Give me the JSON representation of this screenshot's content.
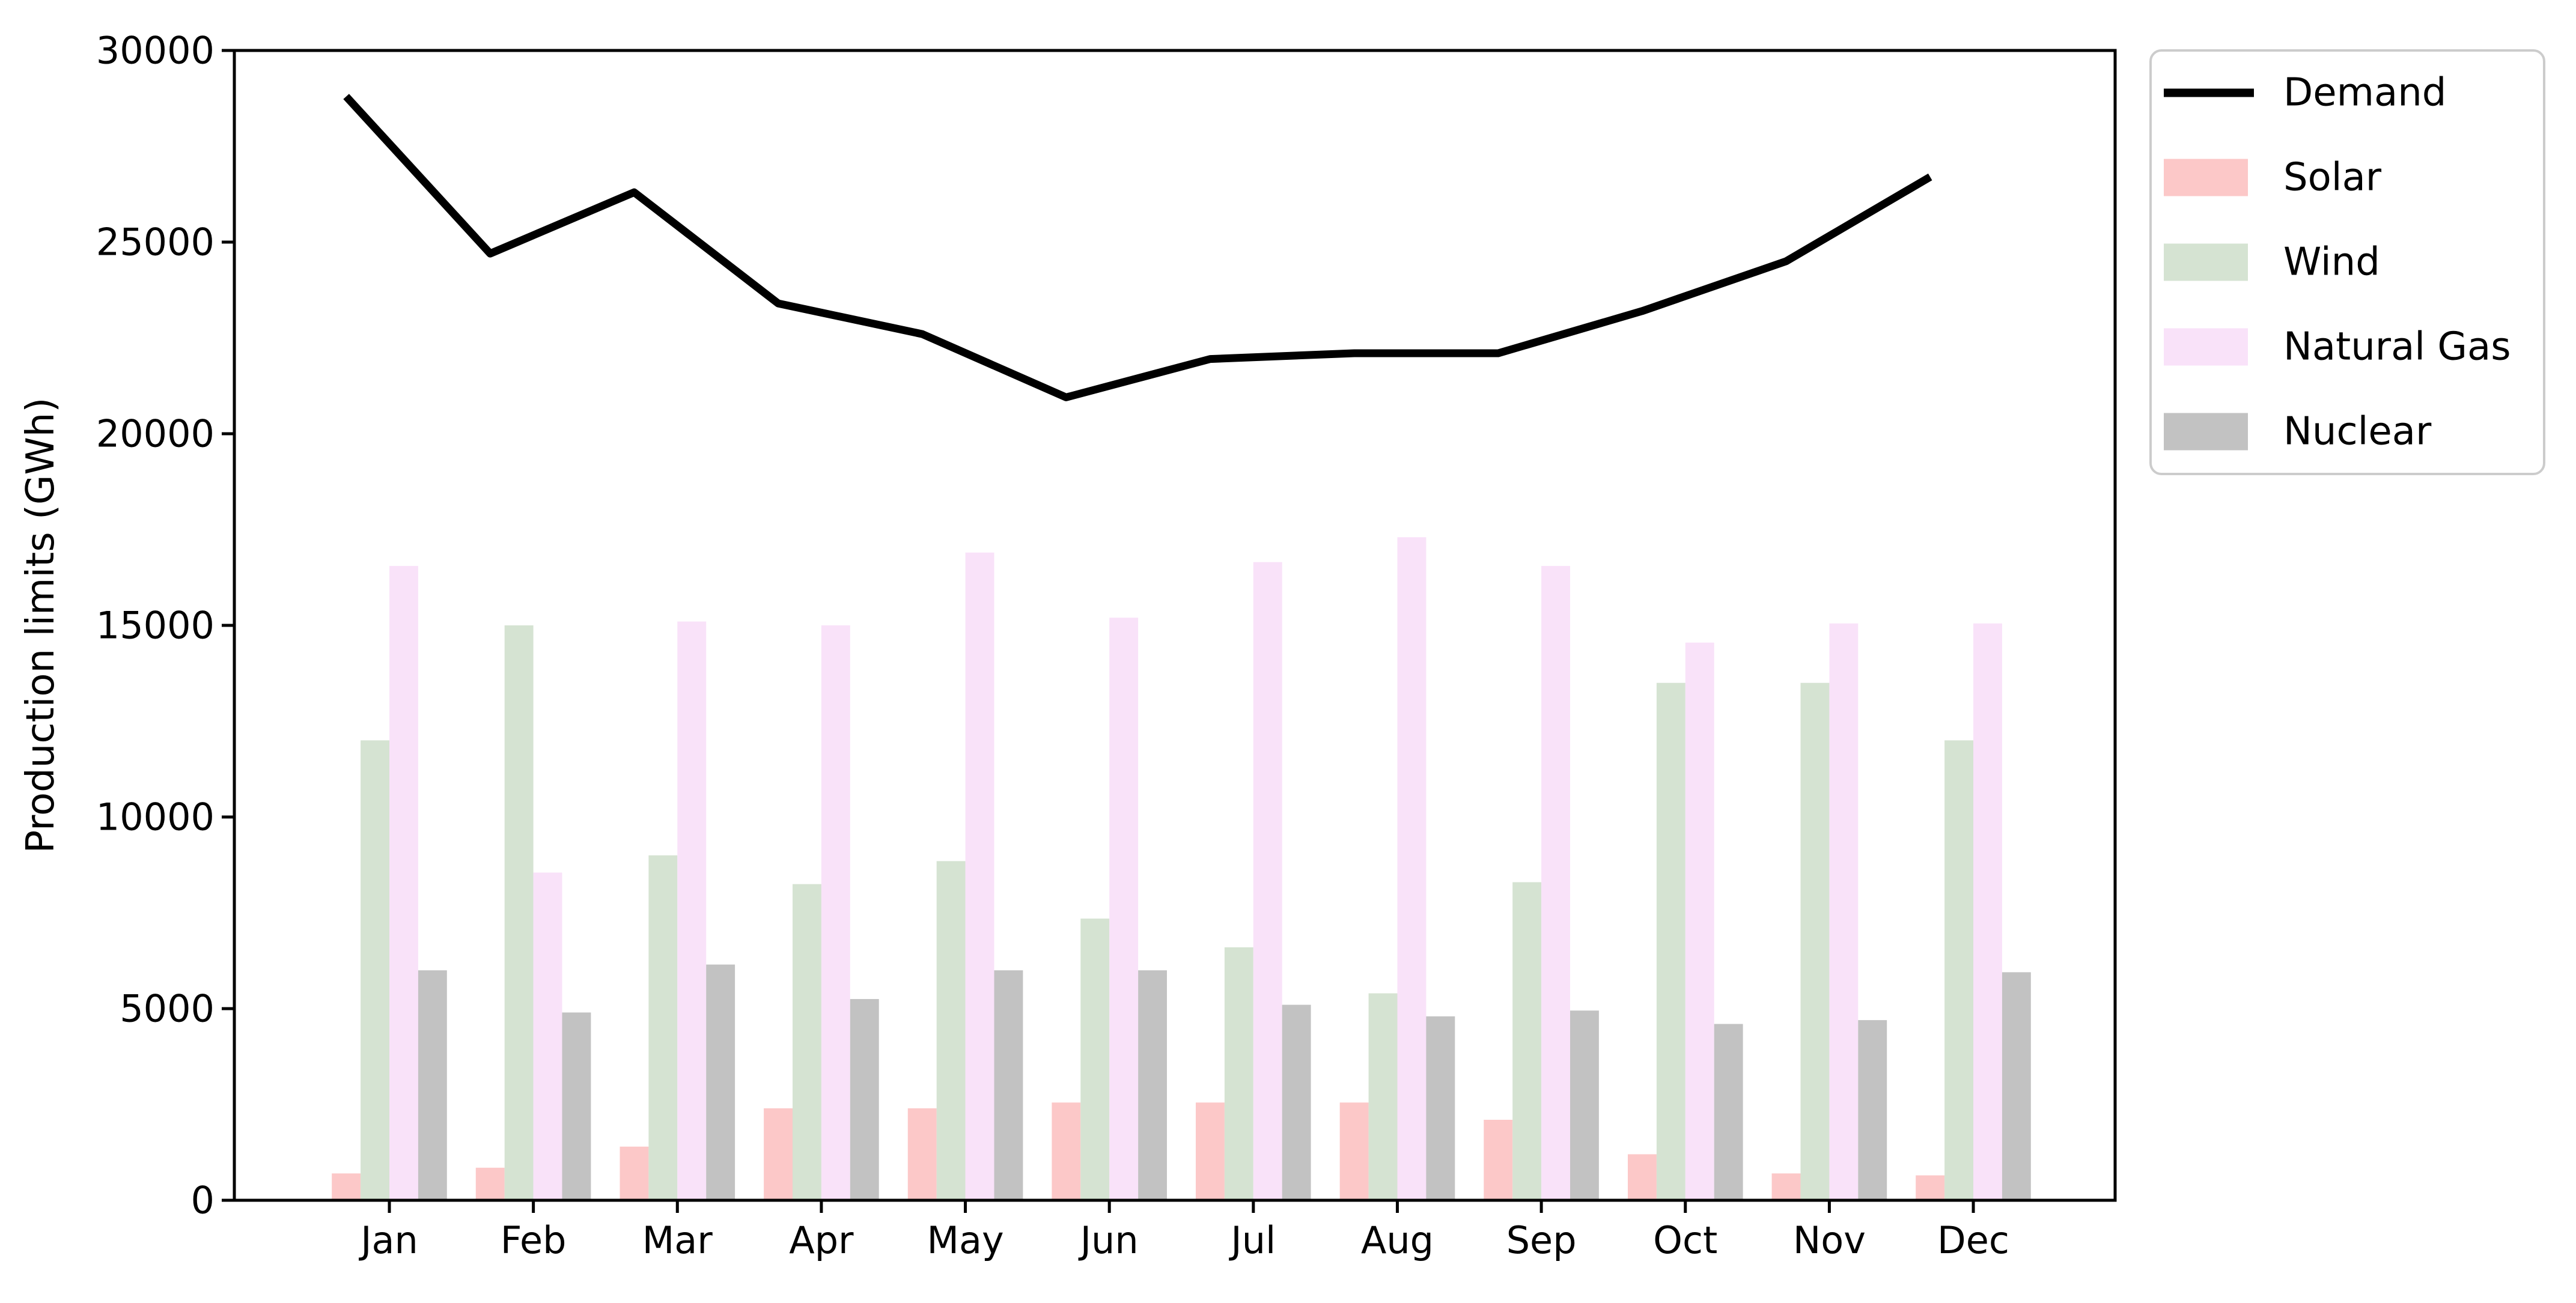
{
  "chart_data": {
    "type": "bar",
    "title": "",
    "xlabel": "",
    "ylabel": "Production limits (GWh)",
    "categories": [
      "Jan",
      "Feb",
      "Mar",
      "Apr",
      "May",
      "Jun",
      "Jul",
      "Aug",
      "Sep",
      "Oct",
      "Nov",
      "Dec"
    ],
    "ylim": [
      0,
      30000
    ],
    "yticks": [
      0,
      5000,
      10000,
      15000,
      20000,
      25000,
      30000
    ],
    "grid": false,
    "legend": {
      "position": "outside-upper-right",
      "entries": [
        "Demand",
        "Solar",
        "Wind",
        "Natural Gas",
        "Nuclear"
      ]
    },
    "line_series": [
      {
        "name": "Demand",
        "color": "#000000",
        "values": [
          28800,
          24700,
          26300,
          23400,
          22600,
          20950,
          21950,
          22100,
          22100,
          23200,
          24500,
          26700
        ]
      }
    ],
    "bar_series": [
      {
        "name": "Solar",
        "color": "#FCC8C8",
        "values": [
          700,
          850,
          1400,
          2400,
          2400,
          2550,
          2550,
          2550,
          2100,
          1200,
          700,
          650
        ]
      },
      {
        "name": "Wind",
        "color": "#D5E3D2",
        "values": [
          12000,
          15000,
          9000,
          8250,
          8850,
          7350,
          6600,
          5400,
          8300,
          13500,
          13500,
          12000
        ]
      },
      {
        "name": "Natural Gas",
        "color": "#F9E2F9",
        "values": [
          16550,
          8550,
          15100,
          15000,
          16900,
          15200,
          16650,
          17300,
          16550,
          14550,
          15050,
          15050
        ]
      },
      {
        "name": "Nuclear",
        "color": "#C2C2C2",
        "values": [
          6000,
          4900,
          6150,
          5250,
          6000,
          6000,
          5100,
          4800,
          4950,
          4600,
          4700,
          5950
        ]
      }
    ]
  }
}
